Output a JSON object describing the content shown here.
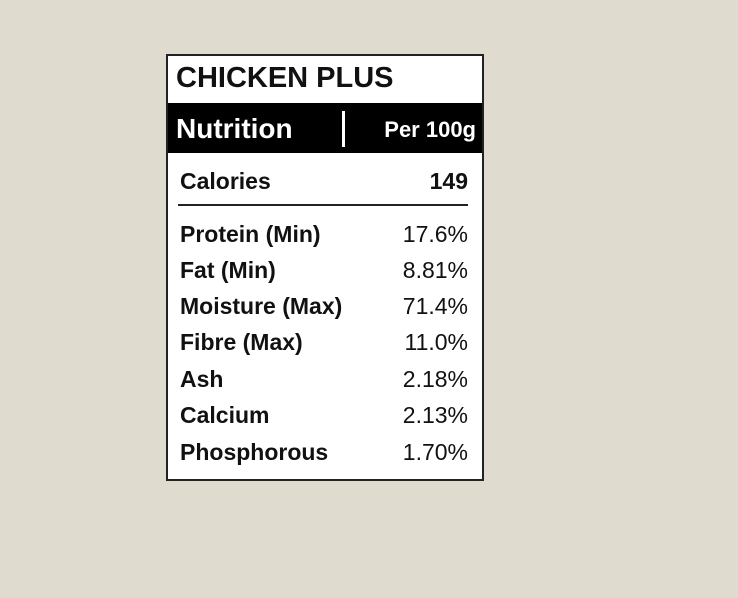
{
  "title": "CHICKEN PLUS",
  "header": {
    "left": "Nutrition",
    "right": "Per 100g"
  },
  "calories": {
    "label": "Calories",
    "value": "149"
  },
  "nutrients": [
    {
      "label": "Protein (Min)",
      "value": "17.6%"
    },
    {
      "label": "Fat (Min)",
      "value": "8.81%"
    },
    {
      "label": "Moisture (Max)",
      "value": "71.4%"
    },
    {
      "label": "Fibre (Max)",
      "value": "11.0%"
    },
    {
      "label": "Ash",
      "value": "2.18%"
    },
    {
      "label": "Calcium",
      "value": "2.13%"
    },
    {
      "label": "Phosphorous",
      "value": "1.70%"
    }
  ]
}
